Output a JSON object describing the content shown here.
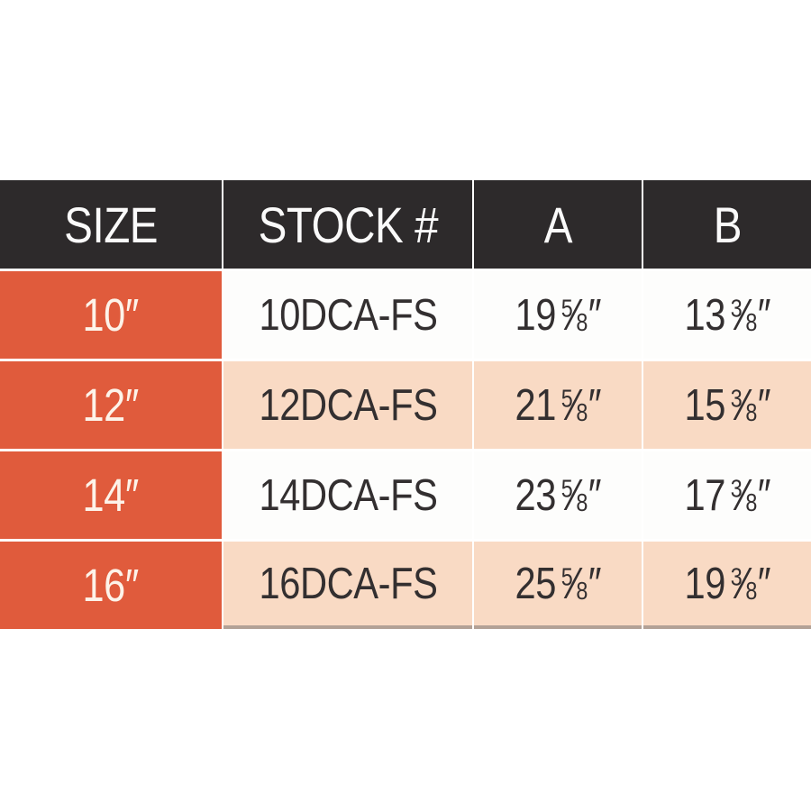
{
  "colors": {
    "header_bg": "#2d2a2b",
    "header_text": "#fafafa",
    "accent_orange": "#e05b3c",
    "orange_text": "#fdf3e9",
    "stripe_peach": "#f9dac4",
    "row_white": "#fdfdfc",
    "body_text": "#332f30",
    "bottom_shadow": "#b3a196"
  },
  "table": {
    "headers": [
      "SIZE",
      "STOCK #",
      "A",
      "B"
    ],
    "inch_mark": "″",
    "fraction_slash": "⁄",
    "rows": [
      {
        "size": "10″",
        "stock": "10DCA-FS",
        "a": {
          "whole": "19",
          "num": "5",
          "den": "8"
        },
        "b": {
          "whole": "13",
          "num": "3",
          "den": "8"
        }
      },
      {
        "size": "12″",
        "stock": "12DCA-FS",
        "a": {
          "whole": "21",
          "num": "5",
          "den": "8"
        },
        "b": {
          "whole": "15",
          "num": "3",
          "den": "8"
        }
      },
      {
        "size": "14″",
        "stock": "14DCA-FS",
        "a": {
          "whole": "23",
          "num": "5",
          "den": "8"
        },
        "b": {
          "whole": "17",
          "num": "3",
          "den": "8"
        }
      },
      {
        "size": "16″",
        "stock": "16DCA-FS",
        "a": {
          "whole": "25",
          "num": "5",
          "den": "8"
        },
        "b": {
          "whole": "19",
          "num": "3",
          "den": "8"
        }
      }
    ]
  }
}
